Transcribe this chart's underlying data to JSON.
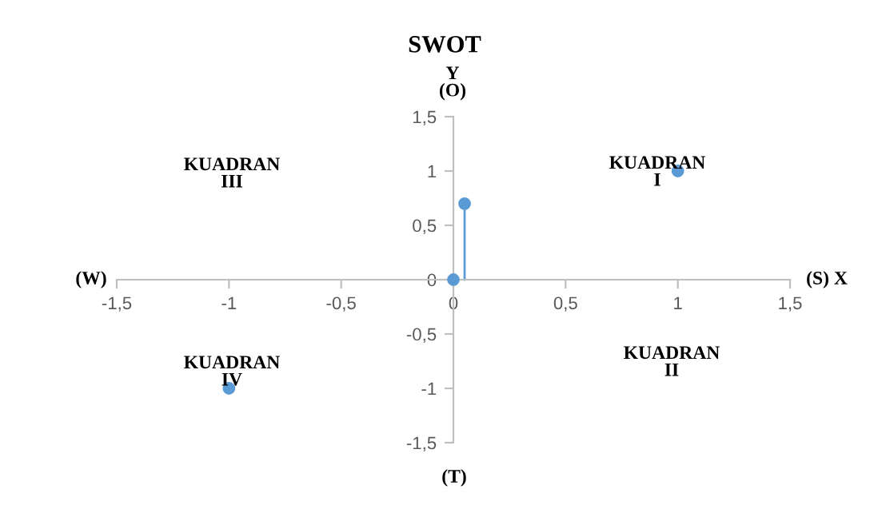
{
  "chart_data": {
    "type": "scatter",
    "title": "SWOT",
    "series": [
      {
        "color": "#5b9bd5",
        "x": [
          0,
          0.05,
          1,
          -1
        ],
        "values": [
          0,
          0.7,
          1,
          -1
        ],
        "marker": "circle"
      },
      {
        "type": "line",
        "color": "#5b9bd5",
        "x": [
          0.05,
          0.05
        ],
        "values": [
          0,
          0.7
        ],
        "marker": "none"
      }
    ],
    "xlim": [
      -1.5,
      1.5
    ],
    "ylim": [
      -1.5,
      1.5
    ],
    "xticks": [
      {
        "value": -1.5,
        "label": "-1,5"
      },
      -1,
      {
        "value": -0.5,
        "label": "-0,5"
      },
      0,
      {
        "value": 0.5,
        "label": "0,5"
      },
      1,
      {
        "value": 1.5,
        "label": "1,5"
      }
    ],
    "yticks": [
      {
        "value": -1.5,
        "label": "-1,5"
      },
      -1,
      {
        "value": -0.5,
        "label": "-0,5"
      },
      0,
      {
        "value": 0.5,
        "label": "0,5"
      },
      1,
      {
        "value": 1.5,
        "label": "1,5"
      }
    ],
    "grid": false,
    "legend": false,
    "annotations": [
      "Y\n(O)",
      "(T)",
      "(W)",
      "(S) X",
      "KUADRAN\nI",
      "KUADRAN\nII",
      "KUADRAN\nIII",
      "KUADRAN\nIV"
    ]
  }
}
